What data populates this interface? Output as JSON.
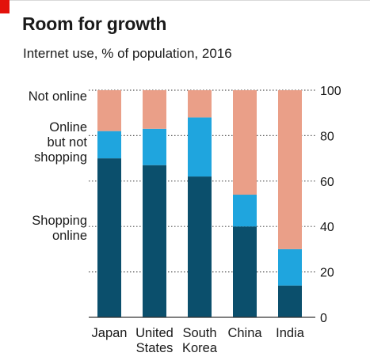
{
  "colors": {
    "accent_tag": "#e3120b",
    "shopping_online": "#0b4f6c",
    "online_not_shopping": "#1fa5de",
    "not_online": "#ea9f88",
    "gridline": "#555555",
    "axis": "#333333"
  },
  "chart_data": {
    "type": "bar",
    "stacked": true,
    "title": "Room for growth",
    "subtitle": "Internet use, % of population, 2016",
    "categories": [
      "Japan",
      "United States",
      "South Korea",
      "China",
      "India"
    ],
    "category_labels": [
      [
        "Japan"
      ],
      [
        "United",
        "States"
      ],
      [
        "South",
        "Korea"
      ],
      [
        "China"
      ],
      [
        "India"
      ]
    ],
    "series": [
      {
        "name": "Shopping online",
        "label_lines": [
          "Shopping",
          "online"
        ],
        "color": "#0b4f6c",
        "values": [
          70,
          67,
          62,
          40,
          14
        ]
      },
      {
        "name": "Online but not shopping",
        "label_lines": [
          "Online",
          "but not",
          "shopping"
        ],
        "color": "#1fa5de",
        "values": [
          12,
          16,
          26,
          14,
          16
        ]
      },
      {
        "name": "Not online",
        "label_lines": [
          "Not online"
        ],
        "color": "#ea9f88",
        "values": [
          18,
          17,
          12,
          46,
          70
        ]
      }
    ],
    "ylim": [
      0,
      100
    ],
    "yticks": [
      0,
      20,
      40,
      60,
      80,
      100
    ],
    "y_axis_side": "right",
    "grid": "dotted",
    "legend": "left, labels beside bars"
  }
}
